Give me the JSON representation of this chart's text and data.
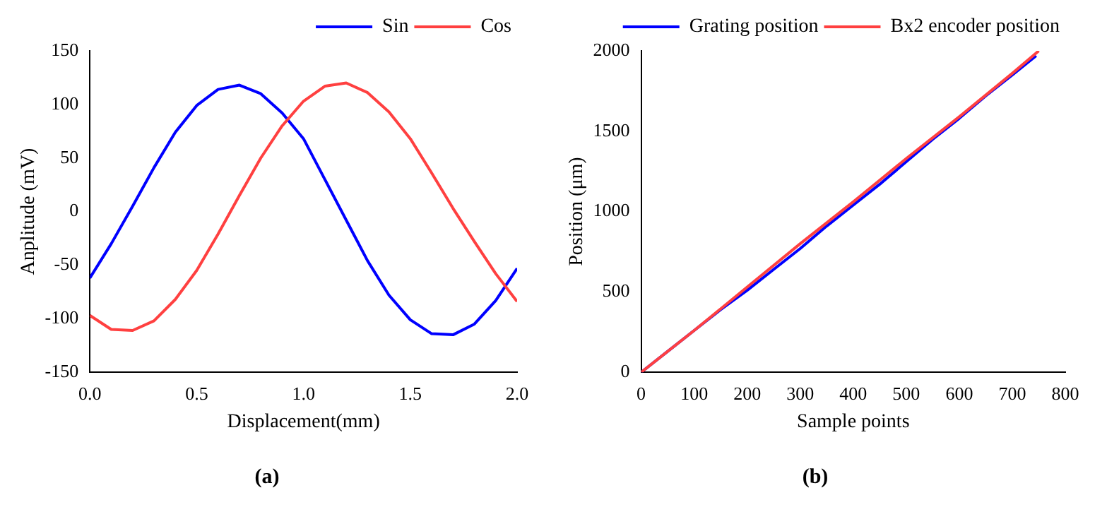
{
  "chart_data": [
    {
      "type": "line",
      "title": "(a)",
      "xlabel": "Displacement(mm)",
      "ylabel": "Anplitude (mV)",
      "xlim": [
        0,
        2
      ],
      "xticks": [
        {
          "value": 0,
          "label": "0.0"
        },
        {
          "value": 0.5,
          "label": "0.5"
        },
        {
          "value": 1,
          "label": "1.0"
        },
        {
          "value": 1.5,
          "label": "1.5"
        },
        {
          "value": 2,
          "label": "2.0"
        }
      ],
      "ylim": [
        -150,
        150
      ],
      "yticks": [
        -150,
        -100,
        -50,
        0,
        50,
        100,
        150
      ],
      "legend": "top right",
      "marker": "none",
      "series": [
        {
          "name": "Sin",
          "color": "#0000ff",
          "x": [
            0,
            0.1,
            0.2,
            0.3,
            0.4,
            0.5,
            0.6,
            0.7,
            0.8,
            0.9,
            1,
            1.1,
            1.2,
            1.3,
            1.4,
            1.5,
            1.6,
            1.7,
            1.8,
            1.9,
            2
          ],
          "values": [
            -62,
            -30,
            5,
            41,
            74,
            99,
            114,
            118,
            110,
            92,
            68,
            30,
            -8,
            -46,
            -78,
            -101,
            -114,
            -115,
            -105,
            -83,
            -53
          ]
        },
        {
          "name": "Cos",
          "color": "#ff4040",
          "x": [
            0,
            0.1,
            0.2,
            0.3,
            0.4,
            0.5,
            0.6,
            0.7,
            0.8,
            0.9,
            1,
            1.1,
            1.2,
            1.3,
            1.4,
            1.5,
            1.6,
            1.7,
            1.8,
            1.9,
            2
          ],
          "values": [
            -97,
            -110,
            -111,
            -102,
            -82,
            -55,
            -21,
            15,
            50,
            80,
            103,
            117,
            120,
            111,
            93,
            68,
            36,
            3,
            -28,
            -58,
            -84
          ]
        }
      ]
    },
    {
      "type": "line",
      "title": "(b)",
      "xlabel": "Sample points",
      "ylabel": "Position (μm)",
      "xlim": [
        0,
        800
      ],
      "xticks": [
        0,
        100,
        200,
        300,
        400,
        500,
        600,
        700,
        800
      ],
      "ylim": [
        0,
        2000
      ],
      "yticks": [
        0,
        500,
        1000,
        1500,
        2000
      ],
      "legend": "top right",
      "marker": "none",
      "series": [
        {
          "name": "Grating position",
          "color": "#0000ff",
          "x": [
            0,
            50,
            100,
            150,
            200,
            250,
            300,
            350,
            400,
            450,
            500,
            550,
            600,
            650,
            700,
            745
          ],
          "values": [
            0,
            130,
            260,
            390,
            510,
            640,
            770,
            910,
            1040,
            1170,
            1310,
            1450,
            1580,
            1720,
            1850,
            1970
          ]
        },
        {
          "name": "Bx2 encoder position",
          "color": "#ff4040",
          "x": [
            0,
            100,
            200,
            300,
            400,
            500,
            600,
            700,
            750
          ],
          "values": [
            0,
            260,
            530,
            800,
            1060,
            1330,
            1590,
            1860,
            2000
          ]
        }
      ]
    }
  ]
}
